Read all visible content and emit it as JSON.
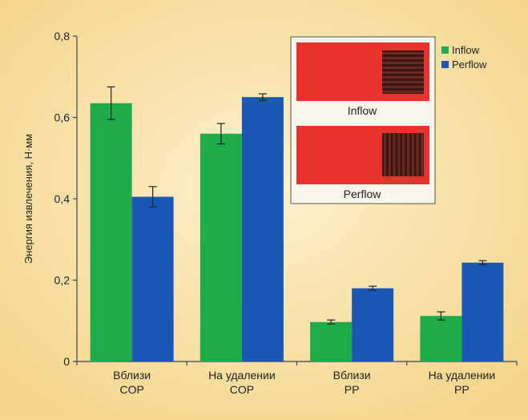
{
  "chart_data": {
    "type": "bar",
    "title": "",
    "xlabel": "",
    "ylabel": "Энергия извлечения, Н·мм",
    "ylim": [
      0,
      0.8
    ],
    "yticks": [
      "0",
      "0,2",
      "0,4",
      "0,6",
      "0,8"
    ],
    "ytick_values": [
      0,
      0.2,
      0.4,
      0.6,
      0.8
    ],
    "categories": [
      [
        "Вблизи",
        "COP"
      ],
      [
        "На удалении",
        "COP"
      ],
      [
        "Вблизи",
        "PP"
      ],
      [
        "На удалении",
        "PP"
      ]
    ],
    "series": [
      {
        "name": "Inflow",
        "color": "#1fab4a",
        "values": [
          0.635,
          0.56,
          0.097,
          0.112
        ],
        "errors": [
          0.04,
          0.025,
          0.005,
          0.01
        ]
      },
      {
        "name": "Perflow",
        "color": "#1b57b6",
        "values": [
          0.405,
          0.65,
          0.18,
          0.243
        ],
        "errors": [
          0.025,
          0.008,
          0.005,
          0.005
        ]
      }
    ],
    "legend_position": "top-right",
    "grid": false,
    "inset": {
      "labels": [
        "Inflow",
        "Perflow"
      ],
      "sample_color": "#e8322e",
      "pattern_color": "#6a2a24"
    }
  }
}
